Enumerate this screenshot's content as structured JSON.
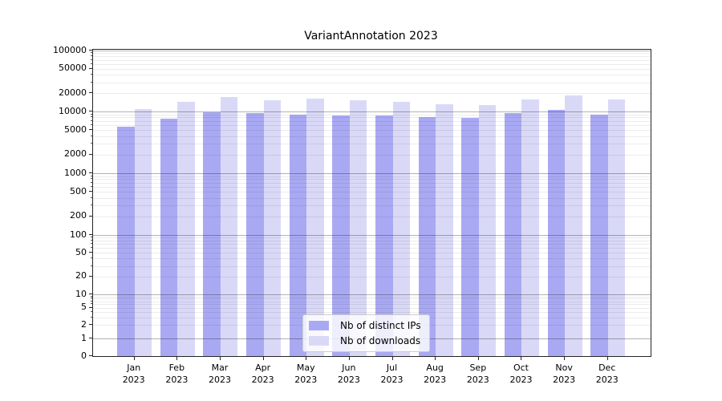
{
  "title": "VariantAnnotation 2023",
  "chart_data": {
    "type": "bar",
    "title": "VariantAnnotation 2023",
    "categories": [
      "Jan 2023",
      "Feb 2023",
      "Mar 2023",
      "Apr 2023",
      "May 2023",
      "Jun 2023",
      "Jul 2023",
      "Aug 2023",
      "Sep 2023",
      "Oct 2023",
      "Nov 2023",
      "Dec 2023"
    ],
    "months": [
      "Jan",
      "Feb",
      "Mar",
      "Apr",
      "May",
      "Jun",
      "Jul",
      "Aug",
      "Sep",
      "Oct",
      "Nov",
      "Dec"
    ],
    "year": "2023",
    "series": [
      {
        "name": "Nb of distinct IPs",
        "color": "#a9a9f3",
        "values": [
          5700,
          7700,
          9600,
          9300,
          9000,
          8700,
          8500,
          8200,
          7900,
          9500,
          10700,
          8800
        ]
      },
      {
        "name": "Nb of downloads",
        "color": "#d9d9f7",
        "values": [
          11000,
          14500,
          17400,
          15500,
          16200,
          15100,
          14400,
          13200,
          12800,
          15900,
          18600,
          16000
        ]
      }
    ],
    "y_ticks": [
      0,
      1,
      2,
      5,
      10,
      20,
      50,
      100,
      200,
      500,
      1000,
      2000,
      5000,
      10000,
      20000,
      50000,
      100000
    ],
    "ylim": [
      0,
      100000
    ],
    "y_scale": "symlog",
    "grid": true,
    "legend_position": "lower center",
    "colors": {
      "grid_minor": "#ebebeb",
      "grid_major": "#b0b0b0",
      "spine": "#252525",
      "background": "#ffffff"
    }
  }
}
